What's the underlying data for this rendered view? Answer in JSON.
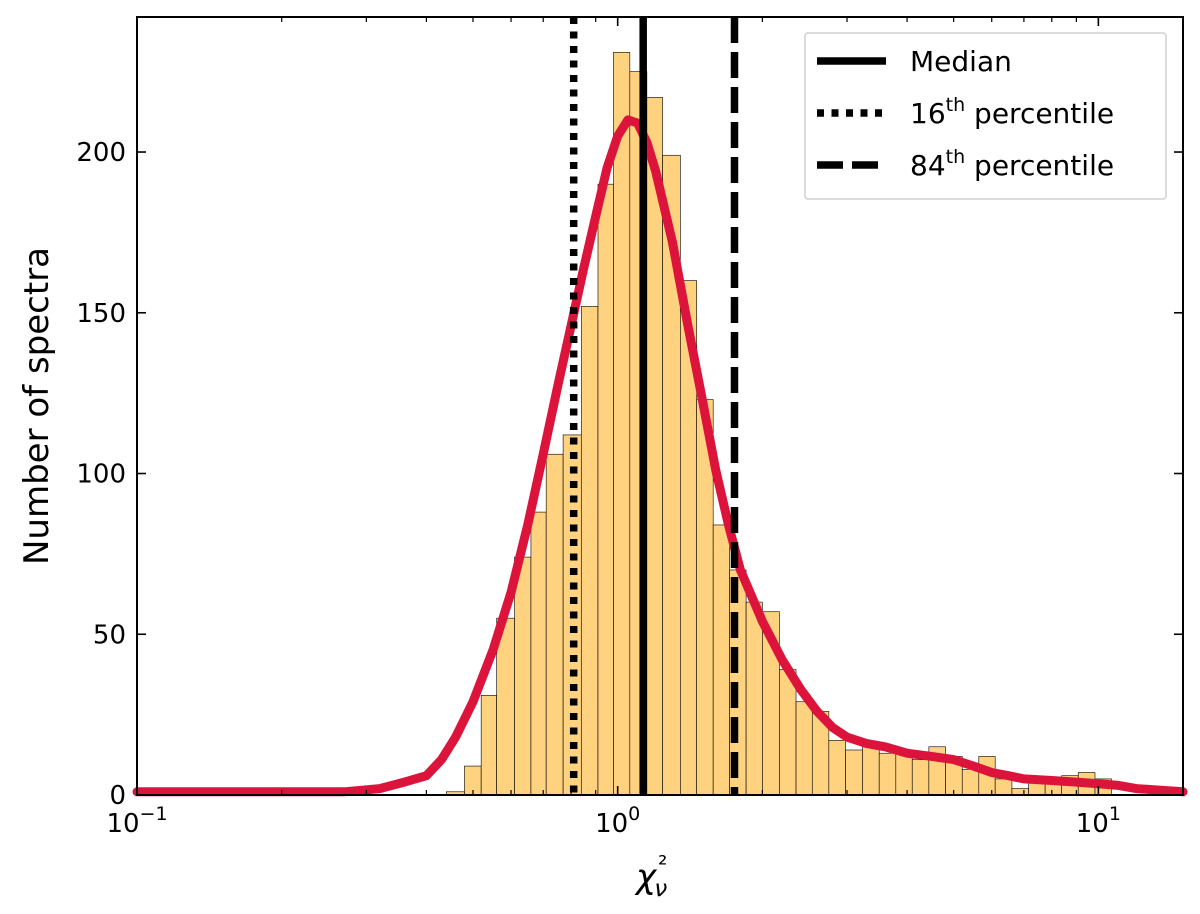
{
  "chart_data": {
    "type": "bar",
    "xscale": "log",
    "xlim": [
      0.1,
      15
    ],
    "ylim": [
      0,
      242
    ],
    "xlabel": "χ²ν",
    "ylabel": "Number of spectra",
    "x_ticks": [
      {
        "value": 0.1,
        "base": "10",
        "exp": "−1"
      },
      {
        "value": 1,
        "base": "10",
        "exp": "0"
      },
      {
        "value": 10,
        "base": "10",
        "exp": "1"
      }
    ],
    "y_ticks": [
      0,
      50,
      100,
      150,
      200
    ],
    "histogram": {
      "color": "#FFD27F",
      "edge_color": "#000000",
      "bins": [
        [
          0.44,
          0.48,
          1
        ],
        [
          0.48,
          0.52,
          9
        ],
        [
          0.52,
          0.56,
          31
        ],
        [
          0.56,
          0.61,
          55
        ],
        [
          0.61,
          0.66,
          74
        ],
        [
          0.66,
          0.71,
          88
        ],
        [
          0.71,
          0.77,
          106
        ],
        [
          0.77,
          0.84,
          112
        ],
        [
          0.84,
          0.91,
          152
        ],
        [
          0.91,
          0.98,
          190
        ],
        [
          0.98,
          1.06,
          231
        ],
        [
          1.06,
          1.15,
          225
        ],
        [
          1.15,
          1.24,
          217
        ],
        [
          1.24,
          1.35,
          199
        ],
        [
          1.35,
          1.46,
          160
        ],
        [
          1.46,
          1.58,
          123
        ],
        [
          1.58,
          1.71,
          84
        ],
        [
          1.71,
          1.85,
          70
        ],
        [
          1.85,
          2.0,
          60
        ],
        [
          2.0,
          2.17,
          57
        ],
        [
          2.17,
          2.35,
          39
        ],
        [
          2.35,
          2.54,
          29
        ],
        [
          2.54,
          2.75,
          26
        ],
        [
          2.75,
          2.98,
          17
        ],
        [
          2.98,
          3.23,
          14
        ],
        [
          3.23,
          3.5,
          15
        ],
        [
          3.5,
          3.79,
          13
        ],
        [
          3.79,
          4.1,
          13
        ],
        [
          4.1,
          4.44,
          11
        ],
        [
          4.44,
          4.81,
          15
        ],
        [
          4.81,
          5.21,
          12
        ],
        [
          5.21,
          5.64,
          8
        ],
        [
          5.64,
          6.1,
          12
        ],
        [
          6.1,
          6.61,
          5
        ],
        [
          6.61,
          7.16,
          2
        ],
        [
          7.16,
          7.75,
          5
        ],
        [
          7.75,
          8.39,
          5
        ],
        [
          8.39,
          9.08,
          6
        ],
        [
          9.08,
          9.84,
          7
        ],
        [
          9.84,
          10.65,
          5
        ]
      ]
    },
    "kde": {
      "color": "#DC143C",
      "points": [
        [
          0.1,
          1
        ],
        [
          0.15,
          1
        ],
        [
          0.2,
          1
        ],
        [
          0.27,
          1
        ],
        [
          0.32,
          2
        ],
        [
          0.36,
          4
        ],
        [
          0.4,
          6
        ],
        [
          0.43,
          11
        ],
        [
          0.46,
          18
        ],
        [
          0.5,
          29
        ],
        [
          0.55,
          45
        ],
        [
          0.6,
          63
        ],
        [
          0.65,
          84
        ],
        [
          0.7,
          106
        ],
        [
          0.75,
          127
        ],
        [
          0.8,
          146
        ],
        [
          0.85,
          164
        ],
        [
          0.9,
          180
        ],
        [
          0.95,
          195
        ],
        [
          1.0,
          205
        ],
        [
          1.05,
          210
        ],
        [
          1.1,
          209
        ],
        [
          1.15,
          203
        ],
        [
          1.2,
          194
        ],
        [
          1.3,
          172
        ],
        [
          1.4,
          146
        ],
        [
          1.5,
          123
        ],
        [
          1.6,
          101
        ],
        [
          1.7,
          84
        ],
        [
          1.8,
          70
        ],
        [
          2.0,
          54
        ],
        [
          2.2,
          42
        ],
        [
          2.4,
          33
        ],
        [
          2.6,
          26
        ],
        [
          2.8,
          21
        ],
        [
          3.0,
          18
        ],
        [
          3.3,
          16
        ],
        [
          3.6,
          15
        ],
        [
          4.0,
          13
        ],
        [
          4.5,
          12
        ],
        [
          5.0,
          11
        ],
        [
          5.5,
          9
        ],
        [
          6.0,
          7
        ],
        [
          6.5,
          6
        ],
        [
          7.0,
          5
        ],
        [
          8.0,
          4.5
        ],
        [
          9.0,
          4
        ],
        [
          10.0,
          3.5
        ],
        [
          11.0,
          3
        ],
        [
          12.0,
          2
        ],
        [
          13.5,
          1.5
        ],
        [
          15.0,
          1
        ]
      ]
    },
    "vlines": [
      {
        "label": "Median",
        "x": 1.13,
        "style": "solid"
      },
      {
        "label": "16th percentile",
        "x": 0.81,
        "style": "dotted"
      },
      {
        "label": "84th percentile",
        "x": 1.75,
        "style": "dashed"
      }
    ],
    "legend": {
      "position": "top-right",
      "entries": [
        {
          "style": "solid",
          "text": "Median",
          "sup": "",
          "rest": ""
        },
        {
          "style": "dotted",
          "text": "16",
          "sup": "th",
          "rest": " percentile"
        },
        {
          "style": "dashed",
          "text": "84",
          "sup": "th",
          "rest": " percentile"
        }
      ]
    }
  }
}
